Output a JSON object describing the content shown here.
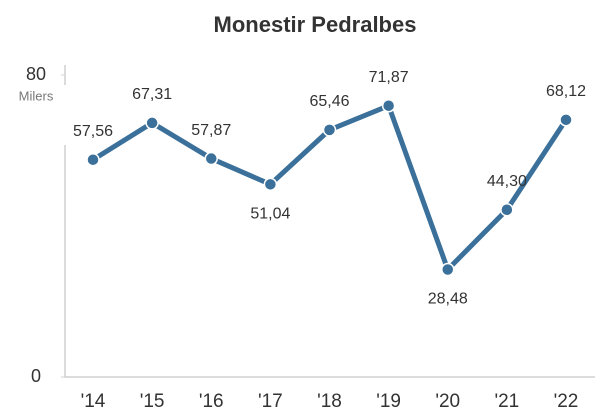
{
  "chart_data": {
    "type": "line",
    "title": "Monestir Pedralbes",
    "ylabel": "Milers",
    "categories": [
      "'14",
      "'15",
      "'16",
      "'17",
      "'18",
      "'19",
      "'20",
      "'21",
      "'22"
    ],
    "series": [
      {
        "name": "Monestir Pedralbes",
        "color": "#3b709a",
        "values": [
          57.56,
          67.31,
          57.87,
          51.04,
          65.46,
          71.87,
          28.48,
          44.3,
          68.12
        ],
        "value_labels": [
          "57,56",
          "67,31",
          "57,87",
          "51,04",
          "65,46",
          "71,87",
          "28,48",
          "44,30",
          "68,12"
        ]
      }
    ],
    "ylim": [
      0,
      80
    ],
    "yticks": [
      0,
      80
    ]
  }
}
